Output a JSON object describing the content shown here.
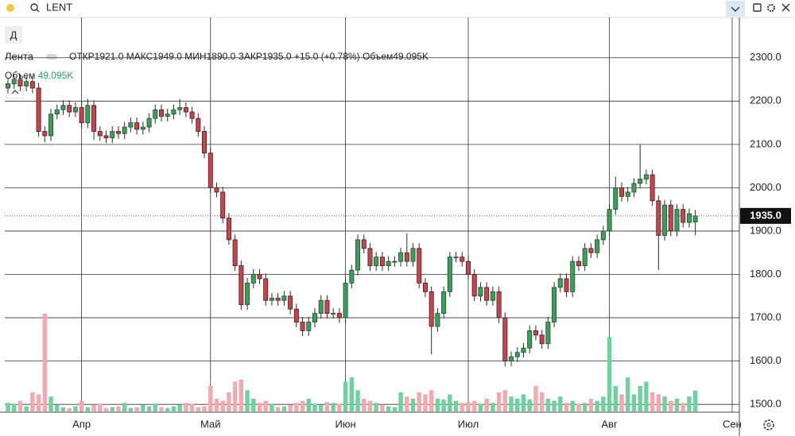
{
  "chart_data": {
    "type": "candlestick",
    "symbol": "LENT",
    "interval": "Д",
    "name": "Лента",
    "legend": {
      "open_label": "ОТКР",
      "open_value": "1921.0",
      "high_label": "МАКС",
      "high_value": "1949.0",
      "low_label": "МИН",
      "low_value": "1890.0",
      "close_label": "ЗАКР",
      "close_value": "1935.0",
      "change": "+15.0 (+0.78%)",
      "volume_label": "Объем",
      "volume_value": "49.095K"
    },
    "categories": [
      null,
      null,
      null,
      null,
      null,
      null,
      null,
      null,
      null,
      null,
      null,
      null,
      "Апр",
      null,
      null,
      null,
      null,
      null,
      null,
      null,
      null,
      null,
      null,
      null,
      null,
      null,
      null,
      null,
      null,
      null,
      null,
      null,
      null,
      "Май",
      null,
      null,
      null,
      null,
      null,
      null,
      null,
      null,
      null,
      null,
      null,
      null,
      null,
      null,
      null,
      null,
      null,
      null,
      null,
      null,
      null,
      "Июн",
      null,
      null,
      null,
      null,
      null,
      null,
      null,
      null,
      null,
      null,
      null,
      null,
      null,
      null,
      null,
      null,
      null,
      null,
      null,
      "Июл",
      null,
      null,
      null,
      null,
      null,
      null,
      null,
      null,
      null,
      null,
      null,
      null,
      null,
      null,
      null,
      null,
      null,
      null,
      null,
      null,
      null,
      null,
      "Авг",
      null,
      null,
      null,
      null,
      null,
      null,
      null,
      null,
      null,
      null,
      null,
      null,
      null,
      null,
      null,
      null,
      null,
      null,
      null,
      "Сен"
    ],
    "open": [
      2230,
      2240,
      2250,
      2235,
      2245,
      2230,
      2130,
      2120,
      2170,
      2180,
      2190,
      2175,
      2185,
      2150,
      2190,
      2130,
      2120,
      2115,
      2130,
      2125,
      2140,
      2150,
      2135,
      2140,
      2160,
      2180,
      2165,
      2170,
      2180,
      2185,
      2175,
      2160,
      2130,
      2080,
      2000,
      1990,
      1930,
      1880,
      1820,
      1730,
      1780,
      1800,
      1790,
      1740,
      1745,
      1740,
      1750,
      1720,
      1690,
      1670,
      1690,
      1710,
      1740,
      1710,
      1710,
      1700,
      1780,
      1810,
      1880,
      1860,
      1820,
      1840,
      1820,
      1830,
      1830,
      1850,
      1830,
      1860,
      1780,
      1760,
      1680,
      1710,
      1760,
      1840,
      1840,
      1830,
      1800,
      1750,
      1770,
      1740,
      1760,
      1700,
      1600,
      1610,
      1620,
      1630,
      1670,
      1660,
      1640,
      1690,
      1770,
      1790,
      1760,
      1830,
      1820,
      1860,
      1850,
      1880,
      1900,
      1950,
      2000,
      1980,
      1990,
      2010,
      2020,
      2030,
      1970,
      1890,
      1960,
      1900,
      1950,
      1920,
      1921,
      null,
      null,
      null,
      null,
      null,
      null
    ],
    "high": [
      2252,
      2262,
      2262,
      2257,
      2257,
      2242,
      2142,
      2182,
      2192,
      2202,
      2202,
      2197,
      2200,
      2205,
      2202,
      2142,
      2132,
      2142,
      2142,
      2152,
      2162,
      2162,
      2152,
      2172,
      2192,
      2192,
      2182,
      2192,
      2205,
      2197,
      2187,
      2172,
      2142,
      2092,
      2012,
      2002,
      1942,
      1892,
      1832,
      1792,
      1812,
      1812,
      1802,
      1757,
      1757,
      1762,
      1762,
      1732,
      1702,
      1702,
      1722,
      1752,
      1752,
      1722,
      1722,
      1792,
      1822,
      1892,
      1892,
      1872,
      1852,
      1852,
      1842,
      1842,
      1862,
      1895,
      1872,
      1872,
      1792,
      1772,
      1722,
      1772,
      1852,
      1852,
      1852,
      1842,
      1812,
      1782,
      1782,
      1772,
      1772,
      1712,
      1622,
      1632,
      1642,
      1682,
      1682,
      1672,
      1702,
      1782,
      1802,
      1802,
      1842,
      1842,
      1872,
      1872,
      1892,
      1912,
      1962,
      2025,
      2012,
      2002,
      2022,
      2100,
      2042,
      2042,
      1982,
      1972,
      1972,
      1962,
      1962,
      1952,
      1949,
      null,
      null,
      null,
      null,
      null,
      null
    ],
    "low": [
      2218,
      2228,
      2223,
      2223,
      2218,
      2118,
      2105,
      2108,
      2158,
      2168,
      2163,
      2163,
      2138,
      2138,
      2110,
      2108,
      2103,
      2103,
      2113,
      2113,
      2128,
      2123,
      2123,
      2128,
      2148,
      2153,
      2153,
      2158,
      2168,
      2163,
      2148,
      2118,
      2068,
      1988,
      1978,
      1918,
      1868,
      1808,
      1718,
      1718,
      1768,
      1778,
      1728,
      1728,
      1728,
      1728,
      1708,
      1678,
      1658,
      1658,
      1678,
      1698,
      1698,
      1698,
      1688,
      1688,
      1768,
      1798,
      1848,
      1808,
      1808,
      1808,
      1808,
      1818,
      1818,
      1818,
      1818,
      1768,
      1748,
      1615,
      1668,
      1698,
      1748,
      1828,
      1818,
      1788,
      1738,
      1738,
      1728,
      1728,
      1688,
      1588,
      1588,
      1598,
      1608,
      1618,
      1648,
      1628,
      1628,
      1678,
      1758,
      1748,
      1748,
      1808,
      1808,
      1838,
      1838,
      1868,
      1888,
      1938,
      1968,
      1968,
      1978,
      1998,
      2008,
      1958,
      1810,
      1878,
      1888,
      1888,
      1908,
      1908,
      1890,
      null,
      null,
      null,
      null,
      null,
      null
    ],
    "close": [
      2240,
      2250,
      2235,
      2245,
      2230,
      2130,
      2120,
      2170,
      2180,
      2190,
      2175,
      2185,
      2150,
      2190,
      2130,
      2120,
      2115,
      2130,
      2125,
      2140,
      2150,
      2135,
      2140,
      2160,
      2180,
      2165,
      2170,
      2180,
      2185,
      2175,
      2160,
      2130,
      2080,
      2000,
      1990,
      1930,
      1880,
      1820,
      1730,
      1780,
      1800,
      1790,
      1740,
      1745,
      1740,
      1750,
      1720,
      1690,
      1670,
      1690,
      1710,
      1740,
      1710,
      1710,
      1700,
      1780,
      1810,
      1880,
      1860,
      1820,
      1840,
      1820,
      1830,
      1830,
      1850,
      1830,
      1860,
      1780,
      1760,
      1680,
      1710,
      1760,
      1840,
      1840,
      1830,
      1800,
      1750,
      1770,
      1740,
      1760,
      1700,
      1600,
      1610,
      1620,
      1630,
      1670,
      1660,
      1640,
      1690,
      1770,
      1790,
      1760,
      1830,
      1820,
      1860,
      1850,
      1880,
      1900,
      1950,
      2000,
      1980,
      1990,
      2010,
      2020,
      2030,
      1970,
      1890,
      1960,
      1900,
      1950,
      1920,
      1940,
      1935,
      null,
      null,
      null,
      null,
      null,
      null
    ],
    "volume": [
      20,
      18,
      25,
      12,
      45,
      40,
      230,
      35,
      15,
      10,
      8,
      12,
      25,
      10,
      15,
      18,
      8,
      10,
      12,
      20,
      8,
      10,
      15,
      12,
      18,
      10,
      8,
      12,
      15,
      20,
      18,
      10,
      12,
      60,
      30,
      25,
      45,
      70,
      75,
      50,
      30,
      20,
      25,
      18,
      10,
      12,
      15,
      20,
      25,
      30,
      18,
      15,
      22,
      20,
      18,
      70,
      80,
      50,
      30,
      25,
      20,
      15,
      12,
      10,
      45,
      35,
      30,
      45,
      40,
      50,
      30,
      28,
      40,
      25,
      20,
      22,
      25,
      18,
      30,
      20,
      45,
      50,
      35,
      30,
      40,
      28,
      60,
      45,
      30,
      25,
      35,
      20,
      25,
      18,
      20,
      30,
      25,
      35,
      175,
      60,
      40,
      80,
      40,
      60,
      70,
      45,
      40,
      35,
      25,
      30,
      20,
      35,
      49.095,
      null,
      null,
      null,
      null,
      null,
      null
    ],
    "ylim": [
      1482,
      2393
    ],
    "yticks": [
      {
        "value": 1500,
        "label": "1500.0"
      },
      {
        "value": 1600,
        "label": "1600.0"
      },
      {
        "value": 1700,
        "label": "1700.0"
      },
      {
        "value": 1800,
        "label": "1800.0"
      },
      {
        "value": 1900,
        "label": "1900.0"
      },
      {
        "value": 2000,
        "label": "2000.0"
      },
      {
        "value": 2100,
        "label": "2100.0"
      },
      {
        "value": 2200,
        "label": "2200.0"
      },
      {
        "value": 2300,
        "label": "2300.0"
      }
    ],
    "last_price": {
      "value": 1935,
      "label": "1935.0"
    },
    "up_color": "#3f9d5c",
    "down_color": "#c4454e",
    "up_volume_color": "#72d0a0",
    "down_volume_color": "#f3a9b0",
    "grid": true
  }
}
